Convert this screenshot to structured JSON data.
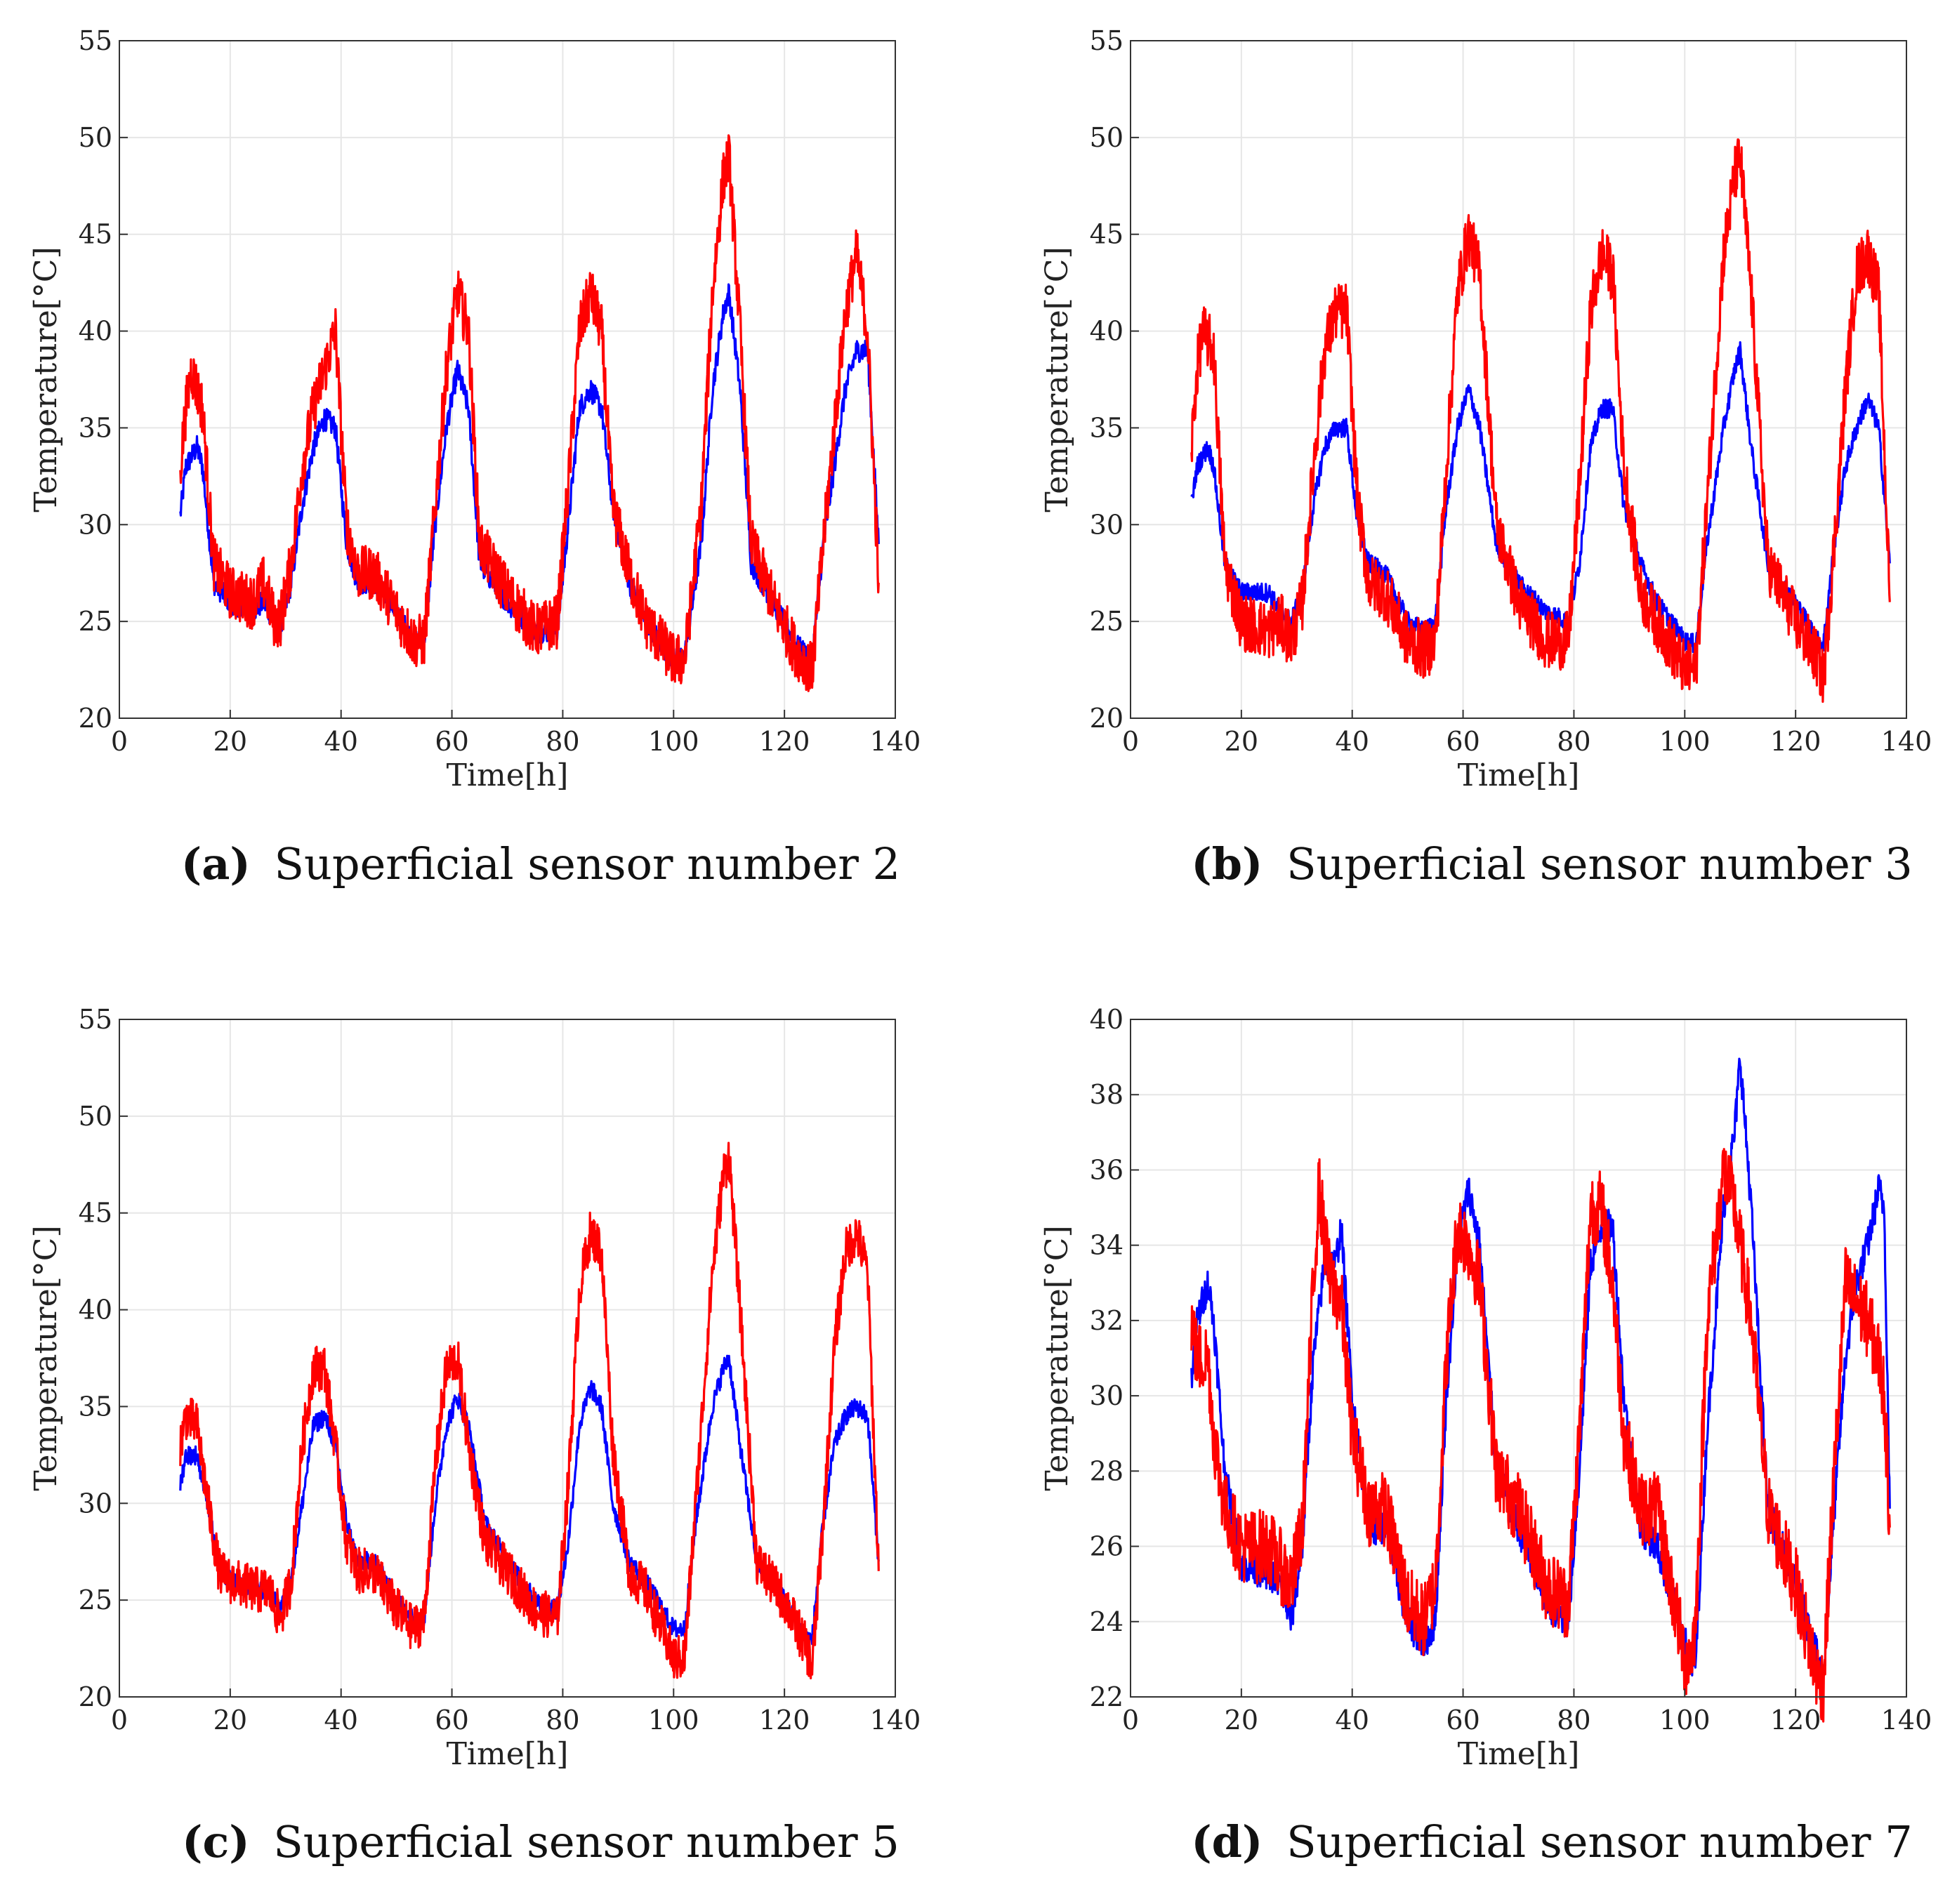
{
  "chart_data": [
    {
      "type": "line",
      "panel_label": "(a)",
      "caption": "Superficial sensor number 2",
      "xlabel": "Time[h]",
      "ylabel": "Temperature[°C]",
      "xlim": [
        0,
        140
      ],
      "ylim": [
        20,
        55
      ],
      "xticks": [
        0,
        20,
        40,
        60,
        80,
        100,
        120,
        140
      ],
      "yticks": [
        20,
        25,
        30,
        35,
        40,
        45,
        50,
        55
      ],
      "grid": true,
      "series": [
        {
          "name": "blue",
          "color": "#0000ff",
          "noise": 0.6,
          "x": [
            11,
            12,
            14,
            15,
            17,
            20,
            24,
            26,
            28,
            29,
            31,
            33,
            35,
            37,
            39,
            41,
            43,
            46,
            49,
            53,
            55,
            57,
            59,
            61,
            63,
            65,
            70,
            75,
            79,
            81,
            83,
            85,
            87,
            89,
            92,
            95,
            100,
            102,
            105,
            107,
            109,
            110,
            112,
            114,
            118,
            122,
            125,
            127,
            129,
            131,
            133,
            135,
            137
          ],
          "y": [
            30.5,
            33,
            34,
            33,
            27,
            26,
            25.5,
            26,
            25,
            24.5,
            27,
            31,
            34,
            35.5,
            35,
            29,
            27,
            27,
            26,
            24,
            24,
            30,
            35,
            38,
            36,
            28,
            26,
            24.5,
            24.5,
            30,
            36,
            37,
            36,
            31,
            27,
            25,
            23,
            23.2,
            29,
            37,
            41,
            42,
            37,
            28,
            26,
            23.8,
            23,
            29,
            33,
            37,
            39,
            39,
            29
          ]
        },
        {
          "name": "red",
          "color": "#ff0000",
          "noise": 1.4,
          "x": [
            11,
            12,
            13,
            15,
            17,
            20,
            24,
            26,
            28,
            29,
            31,
            33,
            35,
            37,
            39,
            41,
            43,
            46,
            49,
            53,
            55,
            57,
            59,
            61,
            63,
            65,
            70,
            75,
            79,
            81,
            83,
            85,
            87,
            89,
            92,
            95,
            100,
            102,
            105,
            107,
            109,
            110,
            112,
            114,
            118,
            122,
            125,
            127,
            129,
            131,
            133,
            135,
            137
          ],
          "y": [
            33,
            36,
            38,
            36,
            28,
            26.5,
            26,
            27,
            25,
            25,
            28,
            33,
            36,
            38,
            40,
            30,
            27.5,
            27.5,
            26,
            24,
            24,
            31,
            38,
            42,
            40,
            29,
            26.5,
            24.5,
            25,
            32,
            40,
            42,
            40,
            31,
            27.5,
            25,
            23,
            23,
            31,
            42,
            48,
            49,
            40,
            29,
            26,
            23.5,
            22.5,
            29,
            35,
            41,
            44,
            40,
            27
          ]
        }
      ]
    },
    {
      "type": "line",
      "panel_label": "(b)",
      "caption": "Superficial sensor number 3",
      "xlabel": "Time[h]",
      "ylabel": "Temperature[°C]",
      "xlim": [
        0,
        140
      ],
      "ylim": [
        20,
        55
      ],
      "xticks": [
        0,
        20,
        40,
        60,
        80,
        100,
        120,
        140
      ],
      "yticks": [
        20,
        25,
        30,
        35,
        40,
        45,
        50,
        55
      ],
      "grid": true,
      "series": [
        {
          "name": "blue",
          "color": "#0000ff",
          "noise": 0.5,
          "x": [
            11,
            12,
            14,
            15,
            17,
            20,
            25,
            27,
            29,
            31,
            33,
            35,
            37,
            39,
            41,
            43,
            46,
            50,
            53,
            55,
            57,
            59,
            61,
            63,
            66,
            70,
            75,
            79,
            81,
            83,
            85,
            87,
            89,
            92,
            95,
            100,
            102,
            104,
            107,
            109,
            110,
            112,
            115,
            120,
            124,
            125,
            127,
            129,
            131,
            133,
            135,
            137
          ],
          "y": [
            31,
            33,
            34,
            33,
            28,
            26.5,
            26.5,
            25.5,
            25,
            26.5,
            31,
            34,
            35,
            35,
            30,
            28,
            27.5,
            25,
            24.5,
            25,
            31,
            35,
            37,
            35,
            29,
            27,
            25.5,
            25,
            28,
            34,
            36,
            36,
            31,
            28,
            26,
            24,
            23.8,
            29,
            35,
            38,
            39,
            34,
            28,
            26,
            24,
            23.8,
            29,
            33,
            35,
            36.5,
            35,
            28
          ]
        },
        {
          "name": "red",
          "color": "#ff0000",
          "noise": 1.5,
          "x": [
            11,
            12,
            13,
            15,
            17,
            20,
            25,
            27,
            29,
            31,
            33,
            35,
            37,
            39,
            41,
            43,
            46,
            50,
            53,
            55,
            57,
            59,
            61,
            63,
            66,
            70,
            75,
            79,
            81,
            83,
            85,
            87,
            89,
            92,
            95,
            100,
            102,
            104,
            107,
            109,
            110,
            112,
            115,
            120,
            124,
            125,
            127,
            129,
            131,
            133,
            135,
            137
          ],
          "y": [
            34,
            38,
            40,
            39,
            28,
            25,
            24.5,
            25,
            24,
            26,
            33,
            39,
            41,
            41,
            31,
            27,
            26.5,
            24,
            23.5,
            24,
            33,
            42,
            45,
            43,
            30,
            26,
            24,
            24,
            32,
            41,
            44,
            43,
            33,
            26.5,
            25,
            22.5,
            22.5,
            31,
            44,
            48,
            49,
            42,
            28,
            25,
            23,
            22,
            29,
            37,
            43,
            44,
            42,
            26
          ]
        }
      ]
    },
    {
      "type": "line",
      "panel_label": "(c)",
      "caption": "Superficial sensor number 5",
      "xlabel": "Time[h]",
      "ylabel": "Temperature[°C]",
      "xlim": [
        0,
        140
      ],
      "ylim": [
        20,
        55
      ],
      "xticks": [
        0,
        20,
        40,
        60,
        80,
        100,
        120,
        140
      ],
      "yticks": [
        20,
        25,
        30,
        35,
        40,
        45,
        50,
        55
      ],
      "grid": true,
      "series": [
        {
          "name": "blue",
          "color": "#0000ff",
          "noise": 0.5,
          "x": [
            11,
            12,
            14,
            16,
            18,
            20,
            25,
            27,
            29,
            31,
            33,
            35,
            37,
            39,
            41,
            43,
            46,
            50,
            53,
            55,
            57,
            59,
            61,
            63,
            66,
            70,
            75,
            79,
            81,
            83,
            85,
            87,
            89,
            92,
            95,
            100,
            102,
            104,
            107,
            109,
            110,
            112,
            115,
            120,
            124,
            125,
            127,
            129,
            131,
            133,
            135,
            137
          ],
          "y": [
            31,
            32.5,
            32.5,
            30,
            26.5,
            26,
            25.5,
            25.5,
            24.5,
            26,
            30,
            34,
            34.5,
            33,
            29,
            27,
            27,
            25,
            24,
            24,
            30,
            34,
            35.5,
            34,
            29,
            27,
            25,
            24.5,
            28,
            34,
            36,
            35,
            30,
            27,
            26,
            23.5,
            23.5,
            29,
            35,
            37,
            37.5,
            33,
            27,
            25,
            23,
            23,
            29,
            33,
            34.5,
            35,
            34.5,
            27
          ]
        },
        {
          "name": "red",
          "color": "#ff0000",
          "noise": 1.2,
          "x": [
            11,
            12,
            14,
            16,
            18,
            20,
            25,
            27,
            29,
            31,
            33,
            35,
            37,
            39,
            41,
            43,
            46,
            50,
            53,
            55,
            57,
            59,
            61,
            63,
            66,
            70,
            75,
            79,
            81,
            83,
            85,
            87,
            89,
            92,
            95,
            100,
            102,
            104,
            107,
            109,
            110,
            112,
            115,
            120,
            124,
            125,
            127,
            129,
            131,
            133,
            135,
            137
          ],
          "y": [
            33,
            34.5,
            34,
            30,
            26.5,
            26,
            25.5,
            25.5,
            24,
            26,
            33,
            37,
            37,
            33,
            28,
            26.5,
            26.5,
            24.5,
            23.5,
            24,
            32,
            37,
            37.5,
            33,
            28,
            26.5,
            24.5,
            24,
            31,
            41,
            44,
            43,
            33,
            26.5,
            25.5,
            22,
            22,
            30,
            42,
            47,
            48,
            40,
            27,
            25,
            22.5,
            21.5,
            29,
            38,
            43,
            44,
            42,
            26.5
          ]
        }
      ]
    },
    {
      "type": "line",
      "panel_label": "(d)",
      "caption": "Superficial sensor number 7",
      "xlabel": "Time[h]",
      "ylabel": "Temperature[°C]",
      "xlim": [
        0,
        140
      ],
      "ylim": [
        22,
        40
      ],
      "xticks": [
        0,
        20,
        40,
        60,
        80,
        100,
        120,
        140
      ],
      "yticks": [
        22,
        24,
        26,
        28,
        30,
        32,
        34,
        36,
        38,
        40
      ],
      "grid": true,
      "series": [
        {
          "name": "blue",
          "color": "#0000ff",
          "noise": 0.45,
          "x": [
            11,
            12,
            14,
            15,
            17,
            20,
            25,
            27,
            29,
            31,
            33,
            35,
            37,
            38,
            40,
            43,
            46,
            50,
            53,
            55,
            57,
            59,
            61,
            63,
            66,
            70,
            75,
            79,
            81,
            83,
            85,
            87,
            89,
            92,
            95,
            100,
            101,
            102,
            104,
            107,
            109,
            110,
            112,
            115,
            120,
            124,
            125,
            127,
            129,
            131,
            133,
            135,
            136,
            137
          ],
          "y": [
            30.5,
            32,
            33,
            32,
            28,
            25.5,
            25.3,
            25,
            24,
            26,
            31,
            33.5,
            33.5,
            34.5,
            30,
            26.5,
            26.5,
            24,
            23.4,
            24,
            30,
            34,
            35.5,
            34,
            28,
            26.5,
            24.5,
            24,
            28,
            33.5,
            34.5,
            34.5,
            30,
            26.5,
            26,
            23.5,
            22.8,
            23,
            29,
            35,
            37,
            39,
            35,
            27,
            25,
            23,
            22.5,
            27,
            31,
            33,
            34,
            35.5,
            35,
            27
          ]
        },
        {
          "name": "red",
          "color": "#ff0000",
          "noise": 1.0,
          "x": [
            11,
            12,
            14,
            15,
            17,
            20,
            25,
            27,
            29,
            31,
            33,
            34,
            36,
            38,
            40,
            43,
            46,
            50,
            53,
            55,
            57,
            59,
            61,
            63,
            66,
            70,
            75,
            79,
            81,
            83,
            85,
            87,
            89,
            92,
            95,
            100,
            101,
            102,
            104,
            107,
            109,
            110,
            112,
            115,
            120,
            124,
            125,
            127,
            129,
            131,
            133,
            135,
            136,
            137
          ],
          "y": [
            32,
            31,
            31,
            29,
            27,
            26,
            26,
            25.5,
            25,
            26.5,
            33,
            35.5,
            33,
            32.5,
            29,
            27,
            27,
            24.5,
            24,
            25,
            31,
            34.5,
            34,
            33,
            28,
            27,
            25,
            24.5,
            29,
            35,
            35,
            33,
            29,
            27,
            27,
            23,
            23,
            24,
            32,
            36,
            35,
            34,
            32,
            27,
            25,
            22.5,
            22.3,
            28,
            33,
            32.5,
            32,
            31,
            30,
            26.5
          ]
        }
      ]
    }
  ]
}
